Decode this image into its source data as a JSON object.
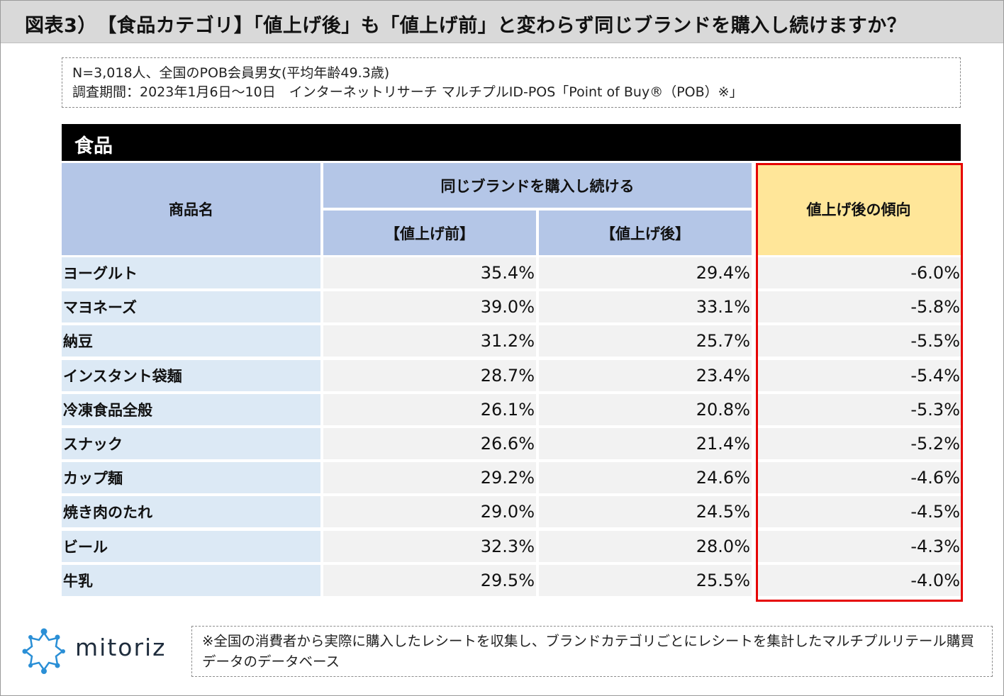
{
  "title": "図表3）　【食品カテゴリ】「値上げ後」も「値上げ前」と変わらず同じブランドを購入し続けますか？",
  "note": {
    "line1": "N=3,018人、全国のPOB会員男女(平均年齢49.3歳)",
    "line2": "調査期間：2023年1月6日〜10日　インターネットリサーチ マルチプルID-POS「Point of Buy®（POB）※」"
  },
  "category_label": "食品",
  "table_headers": {
    "product": "商品名",
    "group": "同じブランドを購入し続ける",
    "before": "【値上げ前】",
    "after": "【値上げ後】",
    "trend": "値上げ後の傾向"
  },
  "chart_data": {
    "type": "table",
    "title": "【食品カテゴリ】「値上げ後」も「値上げ前」と変わらず同じブランドを購入し続けますか？",
    "columns": [
      "商品名",
      "【値上げ前】",
      "【値上げ後】",
      "値上げ後の傾向"
    ],
    "rows": [
      {
        "name": "ヨーグルト",
        "before": "35.4%",
        "after": "29.4%",
        "diff": "-6.0%"
      },
      {
        "name": "マヨネーズ",
        "before": "39.0%",
        "after": "33.1%",
        "diff": "-5.8%"
      },
      {
        "name": "納豆",
        "before": "31.2%",
        "after": "25.7%",
        "diff": "-5.5%"
      },
      {
        "name": "インスタント袋麺",
        "before": "28.7%",
        "after": "23.4%",
        "diff": "-5.4%"
      },
      {
        "name": "冷凍食品全般",
        "before": "26.1%",
        "after": "20.8%",
        "diff": "-5.3%"
      },
      {
        "name": "スナック",
        "before": "26.6%",
        "after": "21.4%",
        "diff": "-5.2%"
      },
      {
        "name": "カップ麺",
        "before": "29.2%",
        "after": "24.6%",
        "diff": "-4.6%"
      },
      {
        "name": "焼き肉のたれ",
        "before": "29.0%",
        "after": "24.5%",
        "diff": "-4.5%"
      },
      {
        "name": "ビール",
        "before": "32.3%",
        "after": "28.0%",
        "diff": "-4.3%"
      },
      {
        "name": "牛乳",
        "before": "29.5%",
        "after": "25.5%",
        "diff": "-4.0%"
      }
    ]
  },
  "logo_text": "mitoriz",
  "footnote": "※全国の消費者から実際に購入したレシートを収集し、ブランドカテゴリごとにレシートを集計したマルチプルリテール購買データのデータベース",
  "colors": {
    "header_blue": "#b4c6e7",
    "name_blue": "#dce9f5",
    "value_gray": "#f2f2f2",
    "trend_yellow": "#ffe699",
    "highlight_red": "#e60000",
    "logo_blue": "#2a8fd6"
  }
}
